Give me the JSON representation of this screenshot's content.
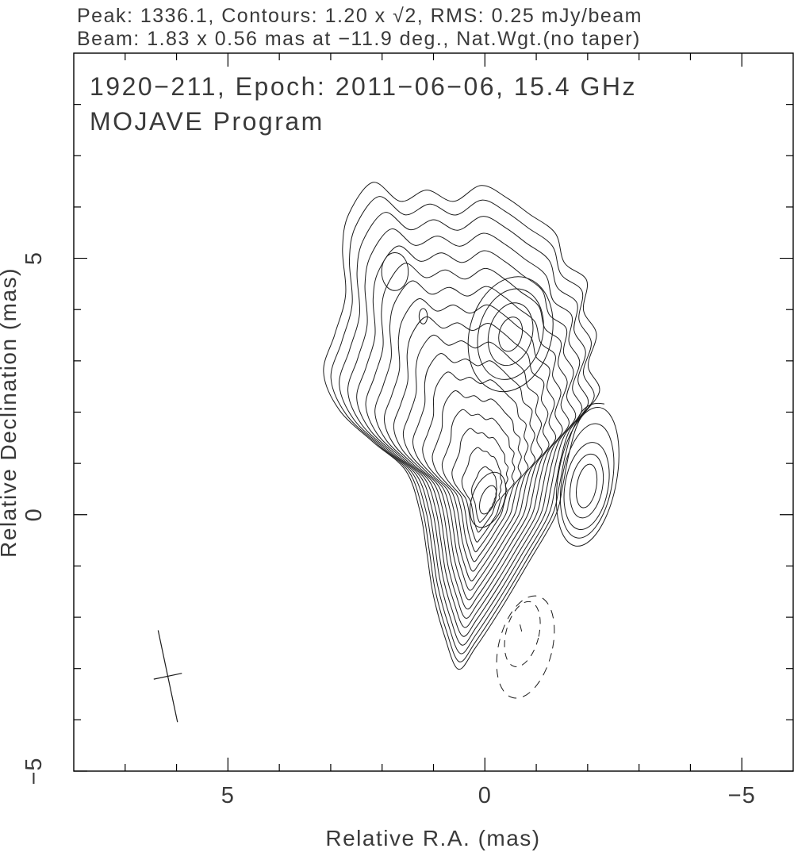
{
  "annotations": {
    "line1": "Peak: 1336.1, Contours: 1.20 x √2, RMS: 0.25 mJy/beam",
    "line2": "Beam: 1.83 x 0.56 mas at −11.9 deg., Nat.Wgt.(no taper)"
  },
  "plot": {
    "title_line1": "1920−211, Epoch: 2011−06−06, 15.4 GHz",
    "title_line2": "MOJAVE Program",
    "xlabel": "Relative R.A. (mas)",
    "ylabel": "Relative Declination (mas)"
  },
  "chart_data": {
    "type": "contour",
    "source_name": "1920−211",
    "epoch": "2011−06−06",
    "frequency_GHz": 15.4,
    "peak_mJy_per_beam": 1336.1,
    "rms_mJy_per_beam": 0.25,
    "contour_base_mJy": 1.2,
    "contour_factor": "√2",
    "n_levels": 18,
    "x_axis": {
      "label": "Relative R.A. (mas)",
      "range": [
        8,
        -6
      ],
      "major_ticks": [
        5,
        0,
        -5
      ],
      "major_labels": [
        "5",
        "0",
        "−5"
      ],
      "minor_ticks": [
        7,
        6,
        4,
        3,
        2,
        1,
        -1,
        -2,
        -3,
        -4
      ]
    },
    "y_axis": {
      "label": "Relative Declination (mas)",
      "range": [
        9,
        -5
      ],
      "major_ticks": [
        5,
        0,
        -5
      ],
      "major_labels": [
        "5",
        "0",
        "−5"
      ],
      "minor_ticks": [
        8,
        7,
        6,
        4,
        3,
        2,
        1,
        -1,
        -2,
        -3,
        -4
      ]
    },
    "beam": {
      "maj_mas": 1.83,
      "min_mas": 0.56,
      "pa_deg": -11.9,
      "cross_center_mas": [
        6.17,
        -3.15
      ]
    },
    "envelope_mas": [
      [
        2.18,
        6.48
      ],
      [
        1.64,
        6.11
      ],
      [
        1.13,
        6.33
      ],
      [
        0.61,
        6.11
      ],
      [
        0.07,
        6.42
      ],
      [
        -0.44,
        6.17
      ],
      [
        -0.87,
        5.86
      ],
      [
        -1.37,
        5.49
      ],
      [
        -1.55,
        4.91
      ],
      [
        -1.98,
        4.57
      ],
      [
        -1.92,
        3.98
      ],
      [
        -2.17,
        3.52
      ],
      [
        -2.01,
        2.9
      ],
      [
        -2.23,
        2.41
      ],
      [
        -1.83,
        1.82
      ],
      [
        -1.64,
        1.2
      ],
      [
        -1.52,
        0.59
      ],
      [
        -1.37,
        -0.03
      ],
      [
        -0.87,
        -0.9
      ],
      [
        -0.36,
        -1.76
      ],
      [
        0.18,
        -2.59
      ],
      [
        0.52,
        -3.01
      ],
      [
        0.79,
        -2.35
      ],
      [
        1.01,
        -1.54
      ],
      [
        1.13,
        -0.74
      ],
      [
        1.26,
        0.05
      ],
      [
        1.54,
        0.86
      ],
      [
        2.18,
        1.42
      ],
      [
        2.83,
        2.04
      ],
      [
        3.14,
        2.78
      ],
      [
        2.92,
        3.52
      ],
      [
        2.71,
        4.29
      ],
      [
        2.77,
        5.19
      ],
      [
        2.65,
        5.86
      ]
    ],
    "core": {
      "center_mas": [
        -0.06,
        0.29
      ],
      "rx_mas": 0.14,
      "ry_mas": 0.29,
      "pa_deg": -20,
      "extra_ring": {
        "rx_mas": 0.31,
        "ry_mas": 0.56
      }
    },
    "knot": {
      "center_mas": [
        -0.5,
        3.52
      ],
      "pa_deg": -15,
      "rings_mas": [
        [
          0.8,
          1.14
        ],
        [
          0.62,
          0.9
        ],
        [
          0.42,
          0.62
        ],
        [
          0.22,
          0.34
        ]
      ]
    },
    "secondary_component": {
      "pa_deg": -10,
      "rings": [
        {
          "c": [
            -1.98,
            0.56
          ],
          "r": [
            0.19,
            0.43
          ]
        },
        {
          "c": [
            -1.98,
            0.56
          ],
          "r": [
            0.31,
            0.63
          ]
        },
        {
          "c": [
            -1.98,
            0.56
          ],
          "r": [
            0.42,
            0.86
          ]
        },
        {
          "c": [
            -1.99,
            0.66
          ],
          "r": [
            0.49,
            1.13
          ]
        },
        {
          "c": [
            -2.0,
            0.74
          ],
          "r": [
            0.57,
            1.37
          ]
        }
      ]
    },
    "negative_contours_dashed": [
      {
        "c": [
          -0.79,
          -2.58
        ],
        "r": [
          0.52,
          1.02
        ],
        "pa_deg": -14
      },
      {
        "c": [
          -0.73,
          -2.33
        ],
        "r": [
          0.32,
          0.65
        ],
        "pa_deg": -14
      }
    ],
    "negative_center_mark_mas": [
      -0.7,
      -2.21
    ],
    "small_loops": [
      {
        "c": [
          1.75,
          4.74
        ],
        "r": [
          0.26,
          0.37
        ]
      },
      {
        "c": [
          1.2,
          3.87
        ],
        "r": [
          0.08,
          0.15
        ]
      }
    ],
    "spur_mas": [
      [
        -2.32,
        2.16
      ],
      [
        -1.94,
        2.24
      ],
      [
        -1.78,
        1.81
      ]
    ]
  }
}
